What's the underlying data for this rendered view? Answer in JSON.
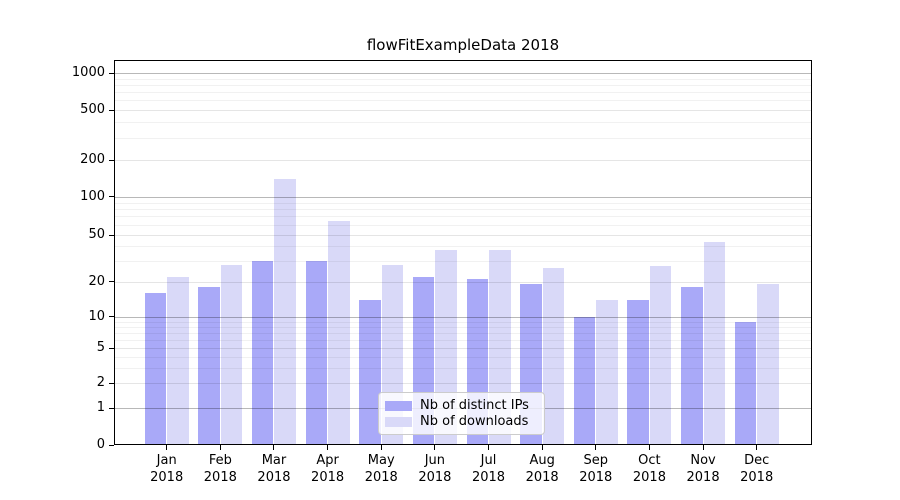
{
  "title": "flowFitExampleData 2018",
  "chart_data": {
    "type": "bar",
    "title": "flowFitExampleData 2018",
    "categories": [
      "Jan 2018",
      "Feb 2018",
      "Mar 2018",
      "Apr 2018",
      "May 2018",
      "Jun 2018",
      "Jul 2018",
      "Aug 2018",
      "Sep 2018",
      "Oct 2018",
      "Nov 2018",
      "Dec 2018"
    ],
    "series": [
      {
        "name": "Nb of distinct IPs",
        "color": "#a9a9f8",
        "values": [
          16,
          18,
          30,
          30,
          14,
          22,
          21,
          19,
          10,
          14,
          18,
          9
        ]
      },
      {
        "name": "Nb of downloads",
        "color": "#d9d9f8",
        "values": [
          22,
          28,
          140,
          64,
          28,
          37,
          37,
          26,
          14,
          27,
          44,
          19
        ]
      }
    ],
    "ylim": [
      0,
      1000
    ],
    "y_axis": {
      "scale": "log-like",
      "ticks": [
        0,
        1,
        2,
        5,
        10,
        20,
        50,
        100,
        200,
        500,
        1000
      ]
    },
    "grid": "horizontal gridlines with log minor lines; darker lines at 1, 10, 100, 1000",
    "legend_position": "inside, lower center"
  },
  "legend": {
    "items": [
      {
        "label": "Nb of distinct IPs",
        "color": "#a9a9f8"
      },
      {
        "label": "Nb of downloads",
        "color": "#d9d9f8"
      }
    ]
  },
  "colors": {
    "background": "#ffffff",
    "bar_distinct_ips": "#a9a9f8",
    "bar_downloads": "#d9d9f8",
    "grid_major": "#b8b8b8",
    "grid_minor": "#ececec",
    "axis": "#000000"
  }
}
